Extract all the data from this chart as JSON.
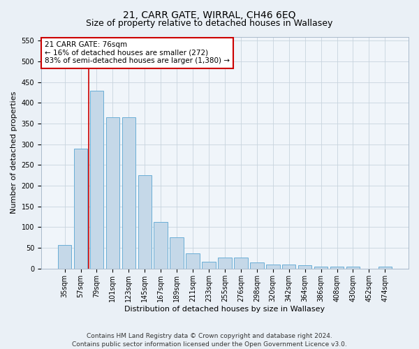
{
  "title": "21, CARR GATE, WIRRAL, CH46 6EQ",
  "subtitle": "Size of property relative to detached houses in Wallasey",
  "xlabel": "Distribution of detached houses by size in Wallasey",
  "ylabel": "Number of detached properties",
  "categories": [
    "35sqm",
    "57sqm",
    "79sqm",
    "101sqm",
    "123sqm",
    "145sqm",
    "167sqm",
    "189sqm",
    "211sqm",
    "233sqm",
    "255sqm",
    "276sqm",
    "298sqm",
    "320sqm",
    "342sqm",
    "364sqm",
    "386sqm",
    "408sqm",
    "430sqm",
    "452sqm",
    "474sqm"
  ],
  "values": [
    57,
    290,
    430,
    365,
    365,
    225,
    113,
    76,
    37,
    17,
    27,
    27,
    15,
    10,
    10,
    8,
    4,
    5,
    5,
    0,
    5
  ],
  "bar_color": "#c5d8e8",
  "bar_edge_color": "#6aaed6",
  "vline_index": 2,
  "vline_color": "#cc0000",
  "annotation_text": "21 CARR GATE: 76sqm\n← 16% of detached houses are smaller (272)\n83% of semi-detached houses are larger (1,380) →",
  "ylim": [
    0,
    560
  ],
  "yticks": [
    0,
    50,
    100,
    150,
    200,
    250,
    300,
    350,
    400,
    450,
    500,
    550
  ],
  "bg_color": "#eaf0f6",
  "plot_bg_color": "#f0f5fa",
  "grid_color": "#c8d4de",
  "footer": "Contains HM Land Registry data © Crown copyright and database right 2024.\nContains public sector information licensed under the Open Government Licence v3.0.",
  "title_fontsize": 10,
  "subtitle_fontsize": 9,
  "xlabel_fontsize": 8,
  "ylabel_fontsize": 8,
  "tick_fontsize": 7,
  "footer_fontsize": 6.5,
  "ann_fontsize": 7.5
}
